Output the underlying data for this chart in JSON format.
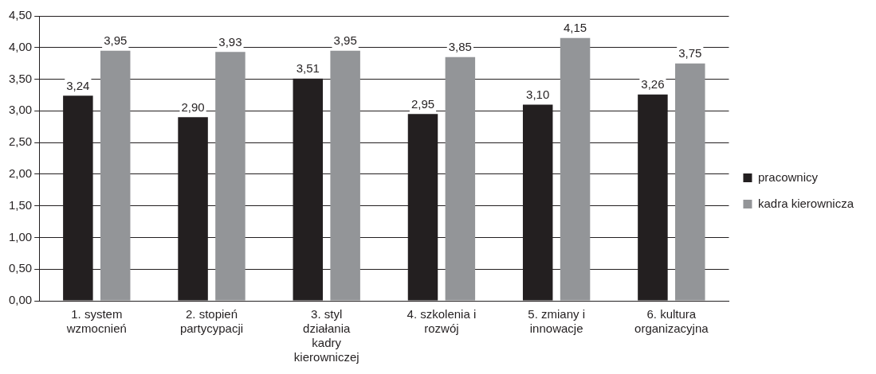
{
  "chart_data": {
    "type": "bar",
    "categories": [
      "1. system wzmocnień",
      "2. stopień partycypacji",
      "3. styl działania kadry kierowniczej",
      "4. szkolenia i rozwój",
      "5. zmiany i innowacje",
      "6. kultura organizacyjna"
    ],
    "series": [
      {
        "name": "pracownicy",
        "color": "#231f20",
        "values": [
          3.24,
          2.9,
          3.51,
          2.95,
          3.1,
          3.26
        ],
        "value_labels": [
          "3,24",
          "2,90",
          "3,51",
          "2,95",
          "3,10",
          "3,26"
        ]
      },
      {
        "name": "kadra kierownicza",
        "color": "#939598",
        "values": [
          3.95,
          3.93,
          3.95,
          3.85,
          4.15,
          3.75
        ],
        "value_labels": [
          "3,95",
          "3,93",
          "3,95",
          "3,85",
          "4,15",
          "3,75"
        ]
      }
    ],
    "ylim": [
      0,
      4.5
    ],
    "yticks": [
      {
        "value": 0,
        "label": "0,00"
      },
      {
        "value": 0.5,
        "label": "0,50"
      },
      {
        "value": 1,
        "label": "1,00"
      },
      {
        "value": 1.5,
        "label": "1,50"
      },
      {
        "value": 2,
        "label": "2,00"
      },
      {
        "value": 2.5,
        "label": "2,50"
      },
      {
        "value": 3,
        "label": "3,00"
      },
      {
        "value": 3.5,
        "label": "3,50"
      },
      {
        "value": 4,
        "label": "4,00"
      },
      {
        "value": 4.5,
        "label": "4,50"
      }
    ],
    "grid": "y",
    "legend": "right"
  }
}
